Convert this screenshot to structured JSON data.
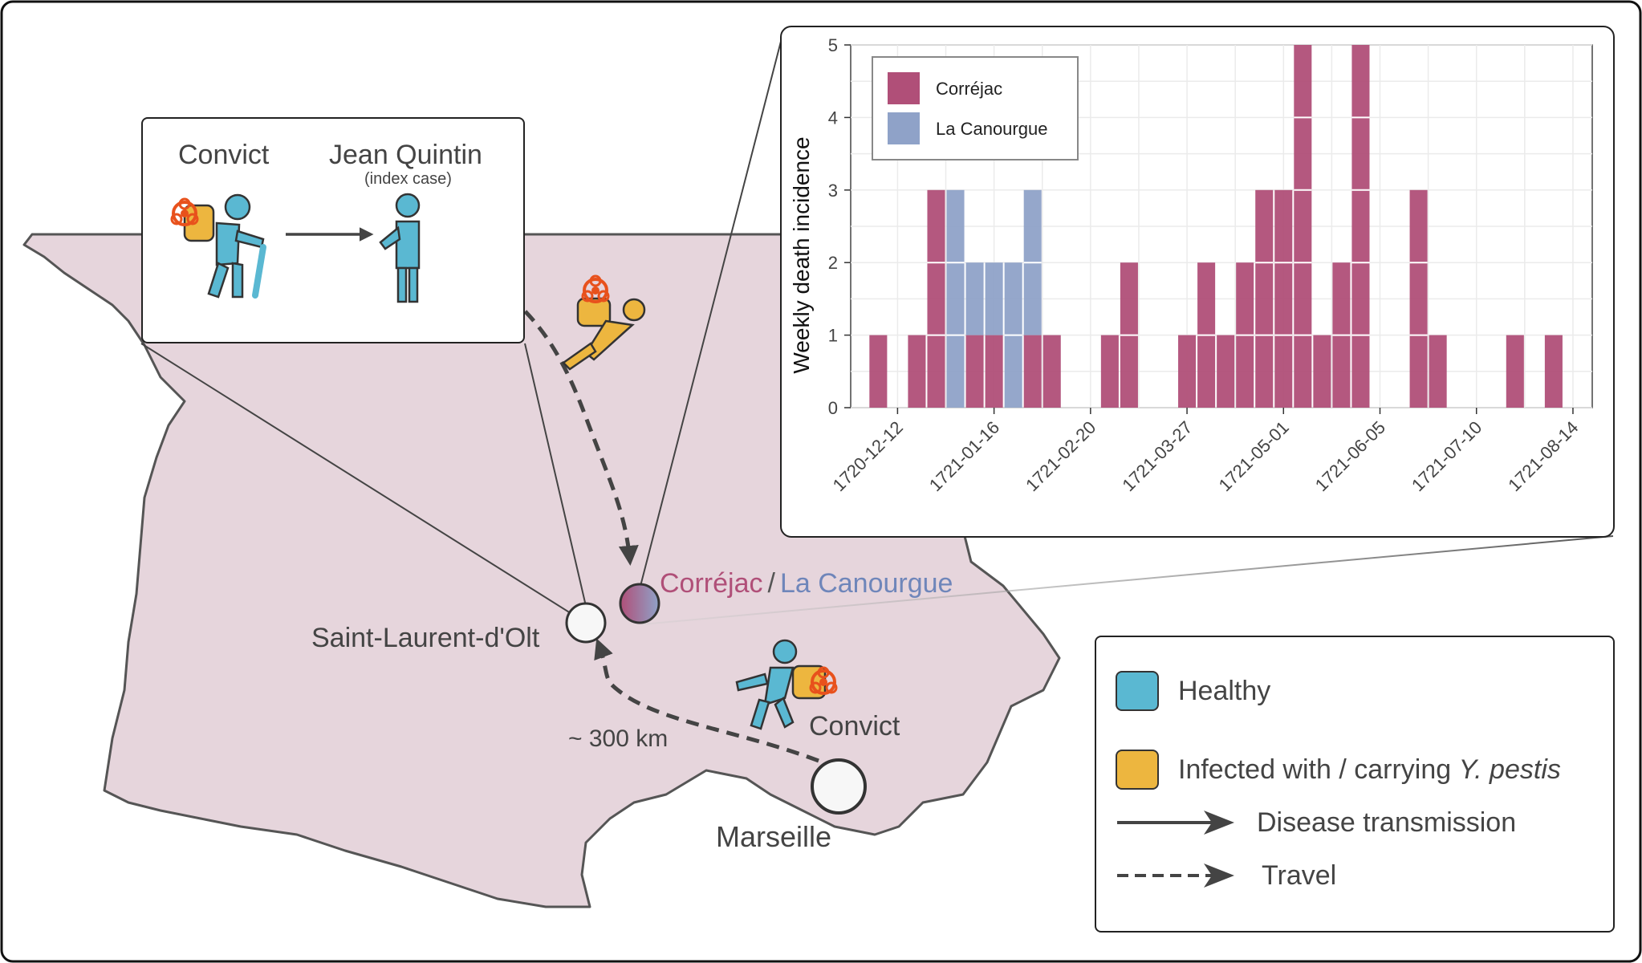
{
  "inset": {
    "convict_label": "Convict",
    "index_case_name": "Jean Quintin",
    "index_case_note": "(index case)"
  },
  "map": {
    "places": {
      "correjac": "Corréjac",
      "separator": "/",
      "la_canourgue": "La Canourgue",
      "saint_laurent": "Saint-Laurent-d'Olt",
      "marseille": "Marseille"
    },
    "distance_label": "~ 300 km",
    "convict_label": "Convict"
  },
  "legend": {
    "healthy": "Healthy",
    "infected_prefix": "Infected with / carrying ",
    "infected_species": "Y. pestis",
    "disease_transmission": "Disease transmission",
    "travel": "Travel"
  },
  "colors": {
    "healthy": "#5ab8d2",
    "infected": "#edb63f",
    "correjac": "#b04f78",
    "la_canourgue": "#8fa2c8",
    "map_fill": "#e6d5dc",
    "biohazard": "#e8511c"
  },
  "chart_data": {
    "type": "bar",
    "stacked": true,
    "ylabel": "Weekly death incidence",
    "xlabel": "",
    "ylim": [
      0,
      5
    ],
    "yticks": [
      0,
      1,
      2,
      3,
      4,
      5
    ],
    "xticks": [
      "1720-12-12",
      "1721-01-16",
      "1721-02-20",
      "1721-03-27",
      "1721-05-01",
      "1721-06-05",
      "1721-07-10",
      "1721-08-14"
    ],
    "grid": true,
    "legend_position": "top-left",
    "x": [
      "1720-12-05",
      "1720-12-19",
      "1720-12-26",
      "1721-01-02",
      "1721-01-09",
      "1721-01-16",
      "1721-01-23",
      "1721-01-30",
      "1721-02-06",
      "1721-02-27",
      "1721-03-06",
      "1721-03-27",
      "1721-04-03",
      "1721-04-10",
      "1721-04-17",
      "1721-04-24",
      "1721-05-01",
      "1721-05-08",
      "1721-05-15",
      "1721-05-22",
      "1721-05-29",
      "1721-06-19",
      "1721-06-26",
      "1721-07-24",
      "1721-08-07"
    ],
    "series": [
      {
        "name": "Corréjac",
        "values": [
          1,
          1,
          3,
          0,
          1,
          1,
          0,
          1,
          1,
          1,
          2,
          1,
          2,
          1,
          2,
          3,
          3,
          5,
          1,
          2,
          5,
          3,
          1,
          1,
          1
        ]
      },
      {
        "name": "La Canourgue",
        "values": [
          0,
          0,
          0,
          3,
          1,
          1,
          2,
          2,
          0,
          0,
          0,
          0,
          0,
          0,
          0,
          0,
          0,
          0,
          0,
          0,
          0,
          0,
          0,
          0,
          0
        ]
      }
    ]
  }
}
